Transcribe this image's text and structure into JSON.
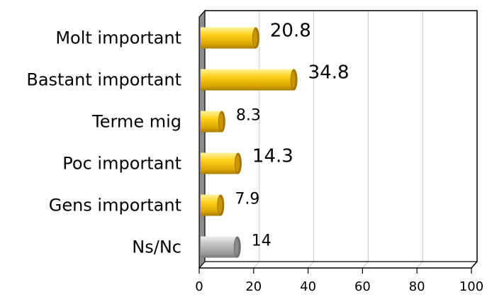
{
  "chart_data": {
    "type": "bar",
    "orientation": "horizontal",
    "categories": [
      "Molt important",
      "Bastant important",
      "Terme mig",
      "Poc important",
      "Gens important",
      "Ns/Nc"
    ],
    "values": [
      20.8,
      34.8,
      8.3,
      14.3,
      7.9,
      14
    ],
    "value_labels": [
      "20.8",
      "34.8",
      "8.3",
      "14.3",
      "7.9",
      "14"
    ],
    "xlim": [
      0,
      100
    ],
    "x_ticks": [
      "0",
      "20",
      "40",
      "60",
      "80",
      "100"
    ],
    "grid": true,
    "legend": "none",
    "colors": [
      "#f2c200",
      "#f2c200",
      "#f2c200",
      "#f2c200",
      "#f2c200",
      "#b5b5b5"
    ],
    "title": "",
    "xlabel": "",
    "ylabel": ""
  }
}
